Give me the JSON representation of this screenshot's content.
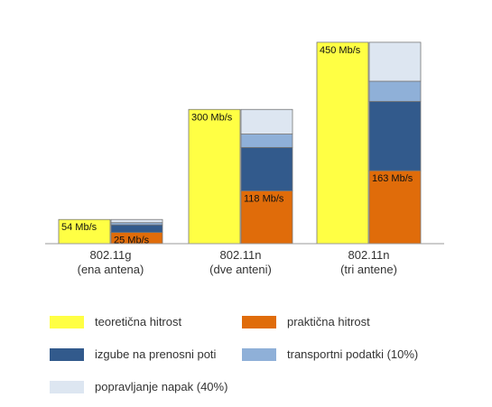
{
  "chart_data": {
    "type": "bar",
    "stacked_right_bar": true,
    "categories": [
      {
        "name": "802.11g",
        "sub": "(ena antena)"
      },
      {
        "name": "802.11n",
        "sub": "(dve anteni)"
      },
      {
        "name": "802.11n",
        "sub": "(tri antene)"
      }
    ],
    "theoretical": {
      "name": "teoretična hitrost",
      "color": "#ffff44",
      "values": [
        54,
        300,
        450
      ],
      "labels": [
        "54 Mb/s",
        "300 Mb/s",
        "450 Mb/s"
      ]
    },
    "breakdown": [
      {
        "name": "praktična hitrost",
        "color": "#e06c0a",
        "values": [
          25,
          118,
          163
        ],
        "labels": [
          "25 Mb/s",
          "118 Mb/s",
          "163 Mb/s"
        ]
      },
      {
        "name": "izgube na prenosni poti",
        "color": "#325a8c",
        "values": [
          17,
          97,
          155
        ]
      },
      {
        "name": "transportni podatki (10%)",
        "color": "#8fb0d8",
        "values": [
          5,
          30,
          45
        ]
      },
      {
        "name": "popravljanje napak (40%)",
        "color": "#dde6f1",
        "values": [
          7,
          55,
          87
        ]
      }
    ],
    "ylim": [
      0,
      480
    ],
    "grid": false,
    "legend_position": "bottom"
  }
}
